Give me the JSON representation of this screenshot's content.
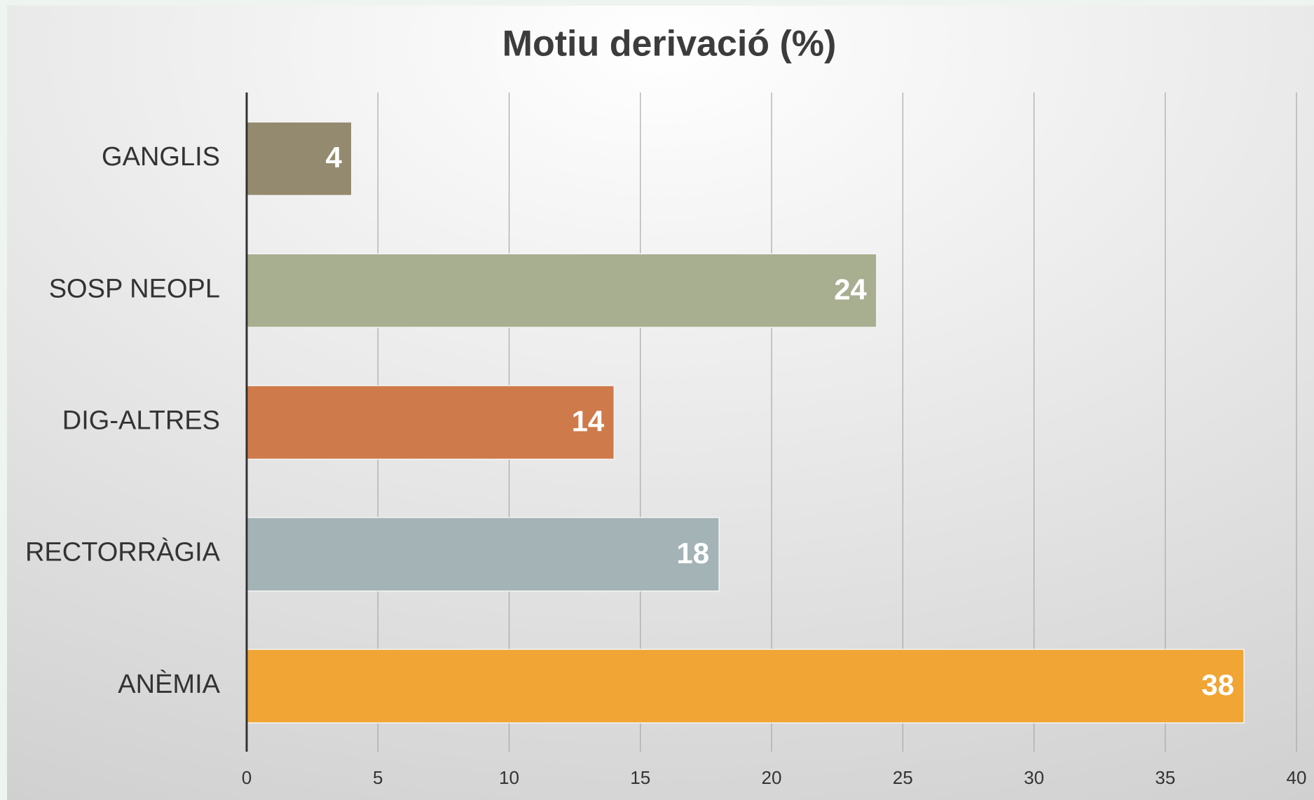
{
  "chart_data": {
    "type": "bar",
    "orientation": "horizontal",
    "title": "Motiu derivació (%)",
    "categories": [
      "GANGLIS",
      "SOSP NEOPL",
      "DIG-ALTRES",
      "RECTORRÀGIA",
      "ANÈMIA"
    ],
    "values": [
      4,
      24,
      14,
      18,
      38
    ],
    "colors": [
      "#948a6f",
      "#a8ae90",
      "#cf7a4b",
      "#a3b3b6",
      "#f0a534"
    ],
    "xlim": [
      0,
      40
    ],
    "xticks": [
      0,
      5,
      10,
      15,
      20,
      25,
      30,
      35,
      40
    ],
    "grid": true
  }
}
